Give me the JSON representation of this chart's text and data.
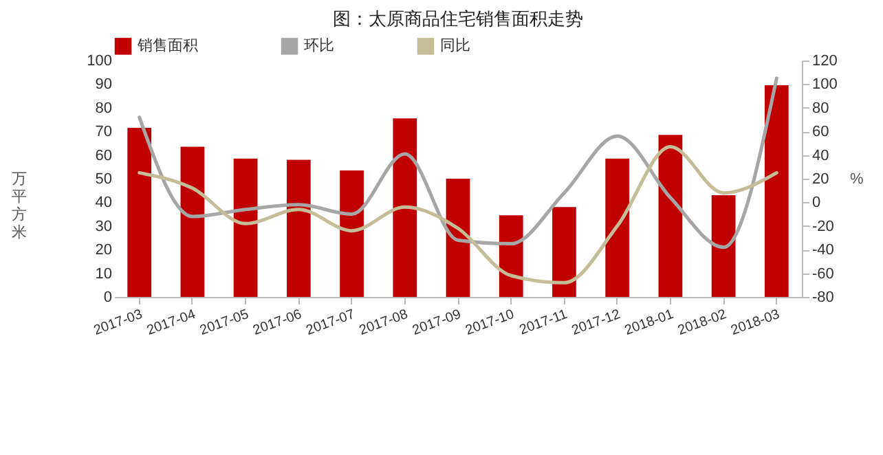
{
  "chart_data": {
    "type": "bar",
    "title": "图：太原商品住宅销售面积走势",
    "ylabel": "万平方米",
    "y2label": "%",
    "categories": [
      "2017-03",
      "2017-04",
      "2017-05",
      "2017-06",
      "2017-07",
      "2017-08",
      "2017-09",
      "2017-10",
      "2017-11",
      "2017-12",
      "2018-01",
      "2018-02",
      "2018-03"
    ],
    "series": [
      {
        "name": "销售面积",
        "color": "#c00000",
        "values": [
          71.5,
          63.5,
          58.5,
          58,
          53.5,
          75.5,
          50,
          34.5,
          38,
          58.5,
          68.5,
          43,
          89.5
        ]
      },
      {
        "name": "环比",
        "type": "line",
        "axis": "y2",
        "color": "#a6a6a6",
        "values": [
          72,
          -12,
          -6,
          -2,
          -10,
          41,
          -32,
          -35,
          8,
          56,
          4,
          -38,
          105
        ]
      },
      {
        "name": "同比",
        "type": "line",
        "axis": "y2",
        "color": "#c4bd97",
        "values": [
          25,
          12,
          -18,
          -6,
          -24,
          -4,
          -22,
          -62,
          -68,
          -20,
          47,
          8,
          25
        ]
      }
    ],
    "ylim": [
      0,
      100
    ],
    "yticks": [
      0,
      10,
      20,
      30,
      40,
      50,
      60,
      70,
      80,
      90,
      100
    ],
    "y2lim": [
      -80,
      120
    ],
    "y2ticks": [
      -80,
      -60,
      -40,
      -20,
      0,
      20,
      40,
      60,
      80,
      100,
      120
    ],
    "grid": false,
    "legend": "top",
    "marker": "none",
    "line_style": "solid"
  }
}
